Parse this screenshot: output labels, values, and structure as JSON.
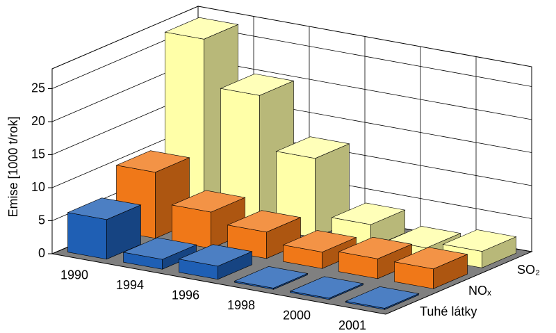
{
  "chart_data": {
    "type": "bar3d",
    "y_label": "Emise [1000 t/rok]",
    "categories": [
      "1990",
      "1994",
      "1996",
      "1998",
      "2000",
      "2001"
    ],
    "series": [
      {
        "name": "Tuhé látky",
        "color": "#1f5fb4",
        "values": [
          6,
          1.5,
          2,
          0.2,
          0.2,
          0.2
        ]
      },
      {
        "name": "NOₓ",
        "color": "#f07818",
        "values": [
          10,
          5.5,
          4,
          2.5,
          3,
          3
        ]
      },
      {
        "name": "SO₂",
        "color": "#ffffa8",
        "values": [
          27,
          20,
          12,
          3.5,
          1.5,
          2.5
        ]
      }
    ],
    "ylim": [
      0,
      28
    ],
    "yticks": [
      0,
      5,
      10,
      15,
      20,
      25
    ],
    "grid": true
  }
}
